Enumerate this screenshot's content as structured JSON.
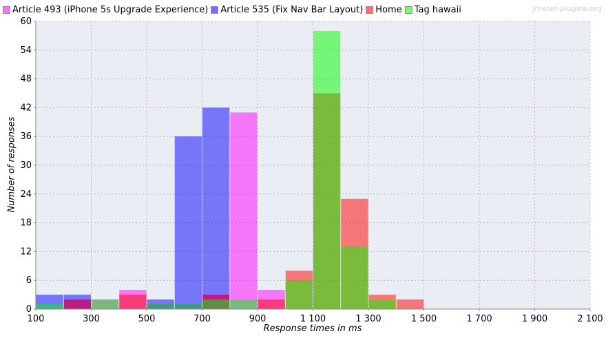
{
  "watermark": "jmeter-plugins.org",
  "chart_data": {
    "type": "bar",
    "xlabel": "Response times in ms",
    "ylabel": "Number of responses",
    "bin_width": 100,
    "xlim": [
      100,
      2100
    ],
    "ylim": [
      0,
      60
    ],
    "x_ticks": [
      {
        "value": 100,
        "label": "100"
      },
      {
        "value": 300,
        "label": "300"
      },
      {
        "value": 500,
        "label": "500"
      },
      {
        "value": 700,
        "label": "700"
      },
      {
        "value": 900,
        "label": "900"
      },
      {
        "value": 1100,
        "label": "1 100"
      },
      {
        "value": 1300,
        "label": "1 300"
      },
      {
        "value": 1500,
        "label": "1 500"
      },
      {
        "value": 1700,
        "label": "1 700"
      },
      {
        "value": 1900,
        "label": "1 900"
      },
      {
        "value": 2100,
        "label": "2 100"
      }
    ],
    "y_ticks": [
      0,
      6,
      12,
      18,
      24,
      30,
      36,
      42,
      48,
      54,
      60
    ],
    "grid": true,
    "legend_position": "top-left",
    "series": [
      {
        "name": "Article 493 (iPhone 5s Upgrade Experience)",
        "color": "#ff00ff",
        "points": [
          [
            100,
            0
          ],
          [
            200,
            2
          ],
          [
            300,
            2
          ],
          [
            400,
            4
          ],
          [
            500,
            1
          ],
          [
            600,
            1
          ],
          [
            700,
            3
          ],
          [
            800,
            41
          ],
          [
            900,
            4
          ],
          [
            1000,
            0
          ],
          [
            1100,
            0
          ],
          [
            1200,
            0
          ],
          [
            1300,
            0
          ],
          [
            1400,
            0
          ]
        ]
      },
      {
        "name": "Article 535 (Fix Nav Bar Layout)",
        "color": "#0000ff",
        "points": [
          [
            100,
            3
          ],
          [
            200,
            3
          ],
          [
            300,
            0
          ],
          [
            400,
            0
          ],
          [
            500,
            2
          ],
          [
            600,
            36
          ],
          [
            700,
            42
          ],
          [
            800,
            0
          ],
          [
            900,
            0
          ],
          [
            1000,
            0
          ],
          [
            1100,
            0
          ],
          [
            1200,
            0
          ],
          [
            1300,
            0
          ],
          [
            1400,
            0
          ]
        ]
      },
      {
        "name": "Home",
        "color": "#ff0000",
        "points": [
          [
            100,
            0
          ],
          [
            200,
            2
          ],
          [
            300,
            0
          ],
          [
            400,
            3
          ],
          [
            500,
            0
          ],
          [
            600,
            0
          ],
          [
            700,
            3
          ],
          [
            800,
            0
          ],
          [
            900,
            2
          ],
          [
            1000,
            8
          ],
          [
            1100,
            45
          ],
          [
            1200,
            23
          ],
          [
            1300,
            3
          ],
          [
            1400,
            2
          ]
        ]
      },
      {
        "name": "Tag hawaii",
        "color": "#00ff00",
        "points": [
          [
            100,
            1
          ],
          [
            200,
            0
          ],
          [
            300,
            2
          ],
          [
            400,
            0
          ],
          [
            500,
            1
          ],
          [
            600,
            1
          ],
          [
            700,
            2
          ],
          [
            800,
            2
          ],
          [
            900,
            0
          ],
          [
            1000,
            6
          ],
          [
            1100,
            58
          ],
          [
            1200,
            13
          ],
          [
            1300,
            2
          ],
          [
            1400,
            0
          ]
        ]
      }
    ]
  }
}
